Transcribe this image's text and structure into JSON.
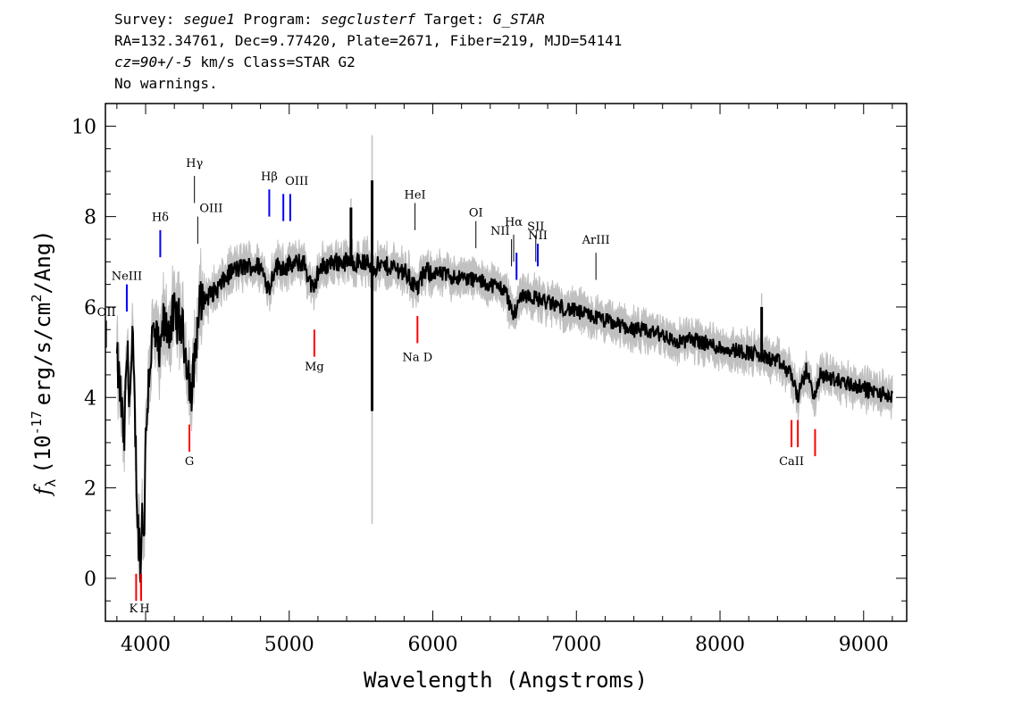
{
  "header": {
    "survey_label": "Survey:",
    "survey": "segue1",
    "program_label": "Program:",
    "program": "segclusterf",
    "target_label": "Target:",
    "target": "G_STAR",
    "coords": "RA=132.34761, Dec=9.77420, Plate=2671, Fiber=219, MJD=54141",
    "cz": "cz=90+/-5",
    "cz_units": "km/s Class=STAR G2",
    "warnings": "No warnings."
  },
  "chart_data": {
    "type": "line",
    "xlabel": "Wavelength (Angstroms)",
    "ylabel_prefix": "f",
    "ylabel_sub": "λ",
    "ylabel_main": "(10",
    "ylabel_exp": "-17",
    "ylabel_units": "erg/s/cm",
    "ylabel_exp2": "2",
    "ylabel_end": "/Ang)",
    "xlim": [
      3720,
      9300
    ],
    "ylim": [
      -0.95,
      10.5
    ],
    "xticks": [
      4000,
      5000,
      6000,
      7000,
      8000,
      9000
    ],
    "yticks": [
      0,
      2,
      4,
      6,
      8,
      10
    ],
    "colors": {
      "flux": "#000000",
      "noise": "#c0c0c0",
      "emission": "#0000ff",
      "absorption": "#ff0000",
      "neutral": "#000000"
    },
    "spectrum_anchors": [
      [
        3800,
        4.8
      ],
      [
        3830,
        3.9
      ],
      [
        3850,
        2.9
      ],
      [
        3870,
        5.1
      ],
      [
        3890,
        4.0
      ],
      [
        3910,
        5.2
      ],
      [
        3925,
        3.6
      ],
      [
        3945,
        1.2
      ],
      [
        3960,
        0.6
      ],
      [
        3968,
        0.3
      ],
      [
        3975,
        1.5
      ],
      [
        3990,
        1.0
      ],
      [
        4000,
        3.0
      ],
      [
        4020,
        4.4
      ],
      [
        4050,
        5.4
      ],
      [
        4080,
        5.2
      ],
      [
        4101,
        4.8
      ],
      [
        4120,
        5.6
      ],
      [
        4150,
        5.5
      ],
      [
        4200,
        5.8
      ],
      [
        4250,
        5.6
      ],
      [
        4300,
        4.6
      ],
      [
        4320,
        3.9
      ],
      [
        4340,
        4.9
      ],
      [
        4380,
        6.1
      ],
      [
        4420,
        6.2
      ],
      [
        4500,
        6.4
      ],
      [
        4600,
        6.8
      ],
      [
        4700,
        6.9
      ],
      [
        4800,
        6.9
      ],
      [
        4861,
        6.4
      ],
      [
        4900,
        6.9
      ],
      [
        5000,
        6.9
      ],
      [
        5100,
        7.0
      ],
      [
        5172,
        6.3
      ],
      [
        5200,
        6.8
      ],
      [
        5300,
        7.0
      ],
      [
        5400,
        7.0
      ],
      [
        5500,
        7.0
      ],
      [
        5600,
        6.9
      ],
      [
        5700,
        6.9
      ],
      [
        5800,
        6.8
      ],
      [
        5890,
        6.4
      ],
      [
        5950,
        6.8
      ],
      [
        6100,
        6.7
      ],
      [
        6300,
        6.6
      ],
      [
        6500,
        6.4
      ],
      [
        6563,
        5.8
      ],
      [
        6620,
        6.3
      ],
      [
        6800,
        6.1
      ],
      [
        7000,
        5.9
      ],
      [
        7200,
        5.7
      ],
      [
        7400,
        5.5
      ],
      [
        7600,
        5.4
      ],
      [
        7700,
        5.2
      ],
      [
        7800,
        5.3
      ],
      [
        8000,
        5.1
      ],
      [
        8200,
        5.0
      ],
      [
        8400,
        4.8
      ],
      [
        8498,
        4.5
      ],
      [
        8542,
        4.0
      ],
      [
        8600,
        4.6
      ],
      [
        8662,
        4.0
      ],
      [
        8700,
        4.5
      ],
      [
        8800,
        4.4
      ],
      [
        9000,
        4.2
      ],
      [
        9200,
        4.0
      ]
    ],
    "sharp_features": [
      {
        "x": 5577,
        "y_top": 8.8,
        "y_bottom": 3.7,
        "noise_top": 9.8,
        "noise_bottom": 1.2
      },
      {
        "x": 5430,
        "y_top": 8.2,
        "y_bottom": 6.9,
        "noise_top": 8.4,
        "noise_bottom": 6.7
      },
      {
        "x": 8290,
        "y_top": 6.0,
        "y_bottom": 5.0,
        "noise_top": 6.3,
        "noise_bottom": 4.8
      }
    ],
    "emission_lines": [
      {
        "label": "NeIII",
        "wavelength": 3869,
        "y_low": 5.9,
        "y_high": 6.5,
        "color": "blue",
        "label_y": 6.6,
        "anchor": "middle"
      },
      {
        "label": "OII",
        "wavelength": 3727,
        "y_low": 5.1,
        "y_high": 5.7,
        "color": "black",
        "label_y": 5.8,
        "anchor": "middle"
      },
      {
        "label": "Hδ",
        "wavelength": 4102,
        "y_low": 7.1,
        "y_high": 7.7,
        "color": "blue",
        "label_y": 7.9,
        "anchor": "middle"
      },
      {
        "label": "Hγ",
        "wavelength": 4340,
        "y_low": 8.3,
        "y_high": 8.9,
        "color": "black",
        "label_y": 9.1,
        "anchor": "middle"
      },
      {
        "label": "OIII",
        "wavelength": 4363,
        "y_low": 7.4,
        "y_high": 8.0,
        "color": "black",
        "label_y": 8.1,
        "anchor": "start"
      },
      {
        "label": "Hβ",
        "wavelength": 4861,
        "y_low": 8.0,
        "y_high": 8.6,
        "color": "blue",
        "label_y": 8.8,
        "anchor": "middle"
      },
      {
        "label": "OIII",
        "wavelength": 4959,
        "y_low": 7.9,
        "y_high": 8.5,
        "color": "blue",
        "label_y": 8.7,
        "anchor": "start"
      },
      {
        "label": "",
        "wavelength": 5007,
        "y_low": 7.9,
        "y_high": 8.5,
        "color": "blue",
        "label_y": 0,
        "anchor": "middle"
      },
      {
        "label": "HeI",
        "wavelength": 5876,
        "y_low": 7.7,
        "y_high": 8.3,
        "color": "black",
        "label_y": 8.4,
        "anchor": "middle"
      },
      {
        "label": "OI",
        "wavelength": 6300,
        "y_low": 7.3,
        "y_high": 7.9,
        "color": "black",
        "label_y": 8.0,
        "anchor": "middle"
      },
      {
        "label": "NII",
        "wavelength": 6548,
        "y_low": 6.9,
        "y_high": 7.5,
        "color": "black",
        "label_y": 7.6,
        "anchor": "end"
      },
      {
        "label": "Hα",
        "wavelength": 6563,
        "y_low": 7.0,
        "y_high": 7.6,
        "color": "black",
        "label_y": 7.8,
        "anchor": "middle"
      },
      {
        "label": "",
        "wavelength": 6583,
        "y_low": 6.6,
        "y_high": 7.2,
        "color": "blue",
        "label_y": 0,
        "anchor": "middle"
      },
      {
        "label": "SII",
        "wavelength": 6717,
        "y_low": 7.0,
        "y_high": 7.6,
        "color": "black",
        "label_y": 7.7,
        "anchor": "middle"
      },
      {
        "label": "NII",
        "wavelength": 6731,
        "y_low": 6.9,
        "y_high": 7.4,
        "color": "blue",
        "label_y": 7.5,
        "anchor": "middle"
      },
      {
        "label": "ArIII",
        "wavelength": 7136,
        "y_low": 6.6,
        "y_high": 7.2,
        "color": "black",
        "label_y": 7.4,
        "anchor": "middle"
      }
    ],
    "absorption_lines": [
      {
        "label": "K",
        "wavelength": 3934,
        "y_low": -0.5,
        "y_high": 0.1,
        "label_y": -0.75
      },
      {
        "label": "H",
        "wavelength": 3969,
        "y_low": -0.5,
        "y_high": 0.1,
        "label_y": -0.75
      },
      {
        "label": "G",
        "wavelength": 4305,
        "y_low": 2.8,
        "y_high": 3.4,
        "label_y": 2.5
      },
      {
        "label": "Mg",
        "wavelength": 5175,
        "y_low": 4.9,
        "y_high": 5.5,
        "label_y": 4.6
      },
      {
        "label": "Na D",
        "wavelength": 5893,
        "y_low": 5.2,
        "y_high": 5.8,
        "label_y": 4.8
      },
      {
        "label": "CaII",
        "wavelength": 8498,
        "y_low": 2.9,
        "y_high": 3.5,
        "label_y": 2.5
      },
      {
        "label": "",
        "wavelength": 8542,
        "y_low": 2.9,
        "y_high": 3.5,
        "label_y": 0
      },
      {
        "label": "",
        "wavelength": 8662,
        "y_low": 2.7,
        "y_high": 3.3,
        "label_y": 0
      }
    ]
  }
}
